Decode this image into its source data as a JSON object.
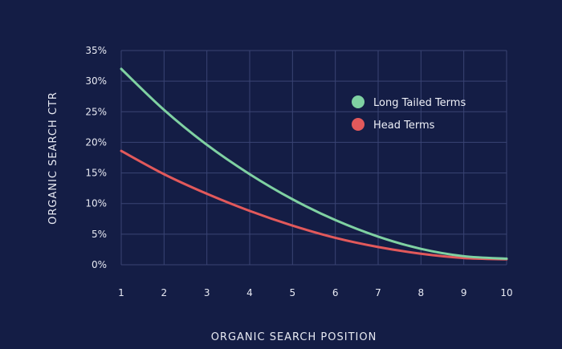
{
  "chart_data": {
    "type": "line",
    "title": "",
    "xlabel": "ORGANIC SEARCH POSITION",
    "ylabel": "ORGANIC SEARCH CTR",
    "xlim": [
      1,
      10
    ],
    "ylim": [
      0,
      35
    ],
    "x_ticks": [
      "1",
      "2",
      "3",
      "4",
      "5",
      "6",
      "7",
      "8",
      "9",
      "10"
    ],
    "y_ticks": [
      "0%",
      "5%",
      "10%",
      "15%",
      "20%",
      "25%",
      "30%",
      "35%"
    ],
    "grid": true,
    "legend_position": "top-right",
    "x": [
      1,
      2,
      3,
      4,
      5,
      6,
      7,
      8,
      9,
      10
    ],
    "series": [
      {
        "name": "Long Tailed Terms",
        "color": "#7fd1a2",
        "values": [
          32.0,
          25.3,
          19.6,
          14.8,
          10.7,
          7.3,
          4.6,
          2.6,
          1.4,
          1.0
        ]
      },
      {
        "name": "Head Terms",
        "color": "#e2595b",
        "values": [
          18.6,
          14.8,
          11.6,
          8.8,
          6.4,
          4.4,
          2.9,
          1.8,
          1.1,
          0.9
        ]
      }
    ],
    "colors": {
      "background": "#141d45",
      "grid": "#3a4474",
      "text": "#e7e9f2"
    }
  }
}
